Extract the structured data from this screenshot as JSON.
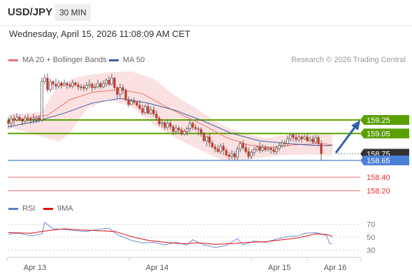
{
  "header": {
    "pair": "USD/JPY",
    "timeframe": "30 MIN"
  },
  "datetime": "Wednesday, April 15, 2026 11:08:09 AM CET",
  "legend": {
    "ma20": "MA 20 + Bollinger Bands",
    "ma50": "MA 50",
    "rsi": "RSI",
    "rsi_ma": "9MA"
  },
  "copyright": "Research © 2026 Trading Central",
  "colors": {
    "green": "#5aa000",
    "blue": "#4a7fd8",
    "red": "#f07070",
    "dark": "#333333",
    "ma20": "#f07070",
    "ma50": "#3a5fa0",
    "rsi": "#5a80d0",
    "rsi_ma": "#e01010"
  },
  "chart_data": {
    "type": "candlestick",
    "x_ticks": [
      "Apr 13",
      "Apr 14",
      "Apr 15",
      "Apr 16"
    ],
    "price_levels": [
      {
        "label": "159.25",
        "value": 159.25,
        "kind": "resistance"
      },
      {
        "label": "159.05",
        "value": 159.05,
        "kind": "resistance"
      },
      {
        "label": "158.75",
        "value": 158.75,
        "kind": "last"
      },
      {
        "label": "158.65",
        "value": 158.65,
        "kind": "pivot"
      },
      {
        "label": "158.40",
        "value": 158.4,
        "kind": "support"
      },
      {
        "label": "158.20",
        "value": 158.2,
        "kind": "support"
      }
    ],
    "rsi_ticks": [
      70,
      50,
      30
    ],
    "candles": [
      [
        159.24,
        159.2,
        159.29,
        159.12
      ],
      [
        159.2,
        159.27,
        159.32,
        159.13
      ],
      [
        159.27,
        159.25,
        159.33,
        159.18
      ],
      [
        159.25,
        159.29,
        159.35,
        159.23
      ],
      [
        159.29,
        159.26,
        159.33,
        159.23
      ],
      [
        159.26,
        159.23,
        159.28,
        159.17
      ],
      [
        159.23,
        159.28,
        159.32,
        159.2
      ],
      [
        159.28,
        159.27,
        159.33,
        159.23
      ],
      [
        159.27,
        159.25,
        159.3,
        159.19
      ],
      [
        159.25,
        159.26,
        159.34,
        159.2
      ],
      [
        159.26,
        159.28,
        159.31,
        159.2
      ],
      [
        159.28,
        159.25,
        159.32,
        159.21
      ],
      [
        159.25,
        159.82,
        159.88,
        159.22
      ],
      [
        159.82,
        159.87,
        159.92,
        159.78
      ],
      [
        159.87,
        159.7,
        159.94,
        159.66
      ],
      [
        159.7,
        159.82,
        159.86,
        159.66
      ],
      [
        159.82,
        159.78,
        159.84,
        159.7
      ],
      [
        159.78,
        159.75,
        159.86,
        159.7
      ],
      [
        159.75,
        159.8,
        159.84,
        159.72
      ],
      [
        159.8,
        159.76,
        159.83,
        159.72
      ],
      [
        159.76,
        159.79,
        159.85,
        159.75
      ],
      [
        159.79,
        159.77,
        159.82,
        159.71
      ],
      [
        159.77,
        159.75,
        159.81,
        159.72
      ],
      [
        159.75,
        159.8,
        159.85,
        159.72
      ],
      [
        159.8,
        159.77,
        159.82,
        159.75
      ],
      [
        159.77,
        159.74,
        159.81,
        159.69
      ],
      [
        159.74,
        159.74,
        159.78,
        159.69
      ],
      [
        159.74,
        159.72,
        159.78,
        159.68
      ],
      [
        159.72,
        159.76,
        159.81,
        159.68
      ],
      [
        159.76,
        159.78,
        159.85,
        159.72
      ],
      [
        159.78,
        159.73,
        159.81,
        159.67
      ],
      [
        159.73,
        159.74,
        159.79,
        159.7
      ],
      [
        159.74,
        159.79,
        159.85,
        159.72
      ],
      [
        159.79,
        159.74,
        159.82,
        159.71
      ],
      [
        159.74,
        159.79,
        159.84,
        159.72
      ],
      [
        159.79,
        159.84,
        159.87,
        159.74
      ],
      [
        159.84,
        159.78,
        159.9,
        159.75
      ],
      [
        159.78,
        159.87,
        159.93,
        159.76
      ],
      [
        159.87,
        159.73,
        159.89,
        159.7
      ],
      [
        159.73,
        159.63,
        159.75,
        159.57
      ],
      [
        159.63,
        159.73,
        159.79,
        159.58
      ],
      [
        159.73,
        159.69,
        159.78,
        159.63
      ],
      [
        159.69,
        159.55,
        159.72,
        159.53
      ],
      [
        159.55,
        159.48,
        159.6,
        159.44
      ],
      [
        159.48,
        159.53,
        159.57,
        159.47
      ],
      [
        159.53,
        159.51,
        159.58,
        159.48
      ],
      [
        159.51,
        159.47,
        159.53,
        159.44
      ],
      [
        159.47,
        159.42,
        159.54,
        159.4
      ],
      [
        159.42,
        159.36,
        159.48,
        159.32
      ],
      [
        159.36,
        159.45,
        159.48,
        159.33
      ],
      [
        159.45,
        159.35,
        159.5,
        159.33
      ],
      [
        159.35,
        159.4,
        159.45,
        159.33
      ],
      [
        159.4,
        159.34,
        159.45,
        159.3
      ],
      [
        159.34,
        159.28,
        159.39,
        159.24
      ],
      [
        159.28,
        159.19,
        159.31,
        159.16
      ],
      [
        159.19,
        159.21,
        159.26,
        159.14
      ],
      [
        159.21,
        159.14,
        159.24,
        159.1
      ],
      [
        159.14,
        159.2,
        159.26,
        159.1
      ],
      [
        159.2,
        159.15,
        159.24,
        159.11
      ],
      [
        159.15,
        159.08,
        159.18,
        159.03
      ],
      [
        159.08,
        159.13,
        159.18,
        159.04
      ],
      [
        159.13,
        159.1,
        159.16,
        159.06
      ],
      [
        159.1,
        159.04,
        159.14,
        159.02
      ],
      [
        159.04,
        159.08,
        159.12,
        159.02
      ],
      [
        159.08,
        159.12,
        159.15,
        159.02
      ],
      [
        159.12,
        159.2,
        159.26,
        159.07
      ],
      [
        159.2,
        159.14,
        159.23,
        159.1
      ],
      [
        159.14,
        159.12,
        159.19,
        159.09
      ],
      [
        159.12,
        159.11,
        159.15,
        159.02
      ],
      [
        159.11,
        159.04,
        159.14,
        159.0
      ],
      [
        159.04,
        158.94,
        159.07,
        158.93
      ],
      [
        158.94,
        159.0,
        159.02,
        158.86
      ],
      [
        159.0,
        158.91,
        159.05,
        158.85
      ],
      [
        158.91,
        158.85,
        158.95,
        158.83
      ],
      [
        158.85,
        158.82,
        158.89,
        158.77
      ],
      [
        158.82,
        158.78,
        158.88,
        158.76
      ],
      [
        158.78,
        158.86,
        158.9,
        158.74
      ],
      [
        158.86,
        158.8,
        158.91,
        158.73
      ],
      [
        158.8,
        158.73,
        158.84,
        158.71
      ],
      [
        158.73,
        158.71,
        158.77,
        158.66
      ],
      [
        158.71,
        158.75,
        158.8,
        158.67
      ],
      [
        158.75,
        158.7,
        158.79,
        158.65
      ],
      [
        158.7,
        158.82,
        158.86,
        158.66
      ],
      [
        158.82,
        158.9,
        158.94,
        158.77
      ],
      [
        158.9,
        158.84,
        158.95,
        158.8
      ],
      [
        158.84,
        158.78,
        158.9,
        158.75
      ],
      [
        158.78,
        158.71,
        158.84,
        158.67
      ],
      [
        158.71,
        158.77,
        158.81,
        158.67
      ],
      [
        158.77,
        158.81,
        158.85,
        158.72
      ],
      [
        158.81,
        158.85,
        158.87,
        158.78
      ],
      [
        158.85,
        158.8,
        158.92,
        158.76
      ],
      [
        158.8,
        158.84,
        158.89,
        158.77
      ],
      [
        158.84,
        158.81,
        158.88,
        158.78
      ],
      [
        158.81,
        158.83,
        158.86,
        158.78
      ],
      [
        158.83,
        158.81,
        158.86,
        158.75
      ],
      [
        158.81,
        158.78,
        158.86,
        158.74
      ],
      [
        158.78,
        158.83,
        158.87,
        158.74
      ],
      [
        158.83,
        158.87,
        158.91,
        158.79
      ],
      [
        158.87,
        158.91,
        158.95,
        158.84
      ],
      [
        158.91,
        158.9,
        158.95,
        158.85
      ],
      [
        158.9,
        158.97,
        159.02,
        158.86
      ],
      [
        158.97,
        159.03,
        159.05,
        158.93
      ],
      [
        159.03,
        158.99,
        159.06,
        158.93
      ],
      [
        158.99,
        158.96,
        159.04,
        158.92
      ],
      [
        158.96,
        159.0,
        159.04,
        158.92
      ],
      [
        159.0,
        158.97,
        159.02,
        158.91
      ],
      [
        158.97,
        159.0,
        159.03,
        158.95
      ],
      [
        159.0,
        158.94,
        159.04,
        158.92
      ],
      [
        158.94,
        158.97,
        159.01,
        158.92
      ],
      [
        158.97,
        158.92,
        159.02,
        158.89
      ],
      [
        158.92,
        158.99,
        159.03,
        158.89
      ],
      [
        158.99,
        158.9,
        159.02,
        158.87
      ],
      [
        158.9,
        158.75,
        158.95,
        158.65
      ]
    ],
    "ma20": [
      [
        0,
        159.23
      ],
      [
        14,
        159.32
      ],
      [
        22,
        159.55
      ],
      [
        30,
        159.66
      ],
      [
        40,
        159.7
      ],
      [
        48,
        159.64
      ],
      [
        55,
        159.48
      ],
      [
        62,
        159.33
      ],
      [
        70,
        159.17
      ],
      [
        78,
        158.99
      ],
      [
        86,
        158.88
      ],
      [
        94,
        158.84
      ],
      [
        102,
        158.88
      ],
      [
        112,
        158.9
      ],
      [
        116,
        158.88
      ]
    ],
    "bb_upper": [
      [
        0,
        159.33
      ],
      [
        12,
        159.37
      ],
      [
        18,
        159.78
      ],
      [
        26,
        159.9
      ],
      [
        36,
        159.96
      ],
      [
        44,
        159.97
      ],
      [
        52,
        159.86
      ],
      [
        60,
        159.6
      ],
      [
        68,
        159.4
      ],
      [
        76,
        159.18
      ],
      [
        84,
        159.05
      ],
      [
        92,
        158.98
      ],
      [
        100,
        159.03
      ],
      [
        108,
        159.06
      ],
      [
        116,
        159.05
      ]
    ],
    "bb_lower": [
      [
        0,
        159.15
      ],
      [
        8,
        159.05
      ],
      [
        14,
        158.98
      ],
      [
        18,
        158.93
      ],
      [
        22,
        159.05
      ],
      [
        28,
        159.42
      ],
      [
        36,
        159.55
      ],
      [
        44,
        159.45
      ],
      [
        52,
        159.18
      ],
      [
        60,
        158.98
      ],
      [
        68,
        158.82
      ],
      [
        76,
        158.66
      ],
      [
        84,
        158.65
      ],
      [
        92,
        158.7
      ],
      [
        100,
        158.73
      ],
      [
        108,
        158.74
      ],
      [
        116,
        158.72
      ]
    ],
    "ma50": [
      [
        0,
        159.15
      ],
      [
        10,
        159.23
      ],
      [
        20,
        159.35
      ],
      [
        30,
        159.5
      ],
      [
        40,
        159.57
      ],
      [
        50,
        159.5
      ],
      [
        60,
        159.39
      ],
      [
        70,
        159.23
      ],
      [
        80,
        159.05
      ],
      [
        90,
        158.94
      ],
      [
        100,
        158.9
      ],
      [
        110,
        158.87
      ],
      [
        116,
        158.87
      ]
    ],
    "rsi": [
      [
        0,
        55
      ],
      [
        4,
        56
      ],
      [
        8,
        52
      ],
      [
        12,
        55
      ],
      [
        13,
        73
      ],
      [
        16,
        63
      ],
      [
        20,
        62
      ],
      [
        24,
        60
      ],
      [
        28,
        59
      ],
      [
        32,
        62
      ],
      [
        36,
        64
      ],
      [
        38,
        57
      ],
      [
        40,
        52
      ],
      [
        44,
        45
      ],
      [
        48,
        41
      ],
      [
        52,
        42
      ],
      [
        56,
        38
      ],
      [
        60,
        42
      ],
      [
        64,
        38
      ],
      [
        66,
        46
      ],
      [
        70,
        38
      ],
      [
        74,
        34
      ],
      [
        78,
        37
      ],
      [
        82,
        48
      ],
      [
        84,
        38
      ],
      [
        88,
        44
      ],
      [
        92,
        42
      ],
      [
        96,
        47
      ],
      [
        100,
        51
      ],
      [
        104,
        52
      ],
      [
        106,
        56
      ],
      [
        110,
        57
      ],
      [
        112,
        55
      ],
      [
        114,
        52
      ],
      [
        115,
        40
      ],
      [
        116,
        40
      ]
    ],
    "rsi_ma": [
      [
        0,
        57
      ],
      [
        8,
        56
      ],
      [
        14,
        60
      ],
      [
        20,
        63
      ],
      [
        26,
        61
      ],
      [
        32,
        60
      ],
      [
        38,
        59
      ],
      [
        44,
        51
      ],
      [
        50,
        45
      ],
      [
        56,
        42
      ],
      [
        62,
        40
      ],
      [
        68,
        41
      ],
      [
        74,
        39
      ],
      [
        80,
        40
      ],
      [
        86,
        42
      ],
      [
        92,
        43
      ],
      [
        98,
        46
      ],
      [
        104,
        49
      ],
      [
        110,
        55
      ],
      [
        114,
        54
      ],
      [
        116,
        51
      ]
    ]
  }
}
